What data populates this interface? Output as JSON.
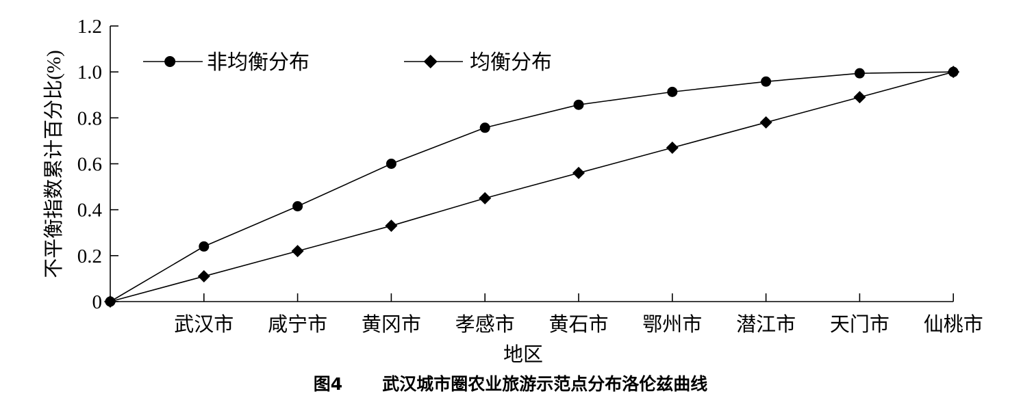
{
  "chart_data": {
    "type": "line",
    "title": "",
    "xlabel": "地区",
    "ylabel": "不平衡指数累计百分比(%)",
    "categories": [
      "",
      "武汉市",
      "咸宁市",
      "黄冈市",
      "孝感市",
      "黄石市",
      "鄂州市",
      "潜江市",
      "天门市",
      "仙桃市"
    ],
    "ylim": [
      0,
      1.2
    ],
    "yticks": [
      "0",
      "0.2",
      "0.4",
      "0.6",
      "0.8",
      "1.0",
      "1.2"
    ],
    "ytick_values": [
      0,
      0.2,
      0.4,
      0.6,
      0.8,
      1.0,
      1.2
    ],
    "grid": false,
    "legend_position": "top-left",
    "series": [
      {
        "name": "非均衡分布",
        "marker": "circle",
        "color": "#000000",
        "values": [
          0,
          0.24,
          0.415,
          0.6,
          0.757,
          0.857,
          0.913,
          0.958,
          0.994,
          1.0
        ]
      },
      {
        "name": "均衡分布",
        "marker": "diamond",
        "color": "#000000",
        "values": [
          0,
          0.11,
          0.22,
          0.33,
          0.45,
          0.56,
          0.67,
          0.78,
          0.89,
          1.0
        ]
      }
    ]
  },
  "caption": {
    "figure_number": "图4",
    "text": "武汉城市圈农业旅游示范点分布洛伦兹曲线"
  }
}
